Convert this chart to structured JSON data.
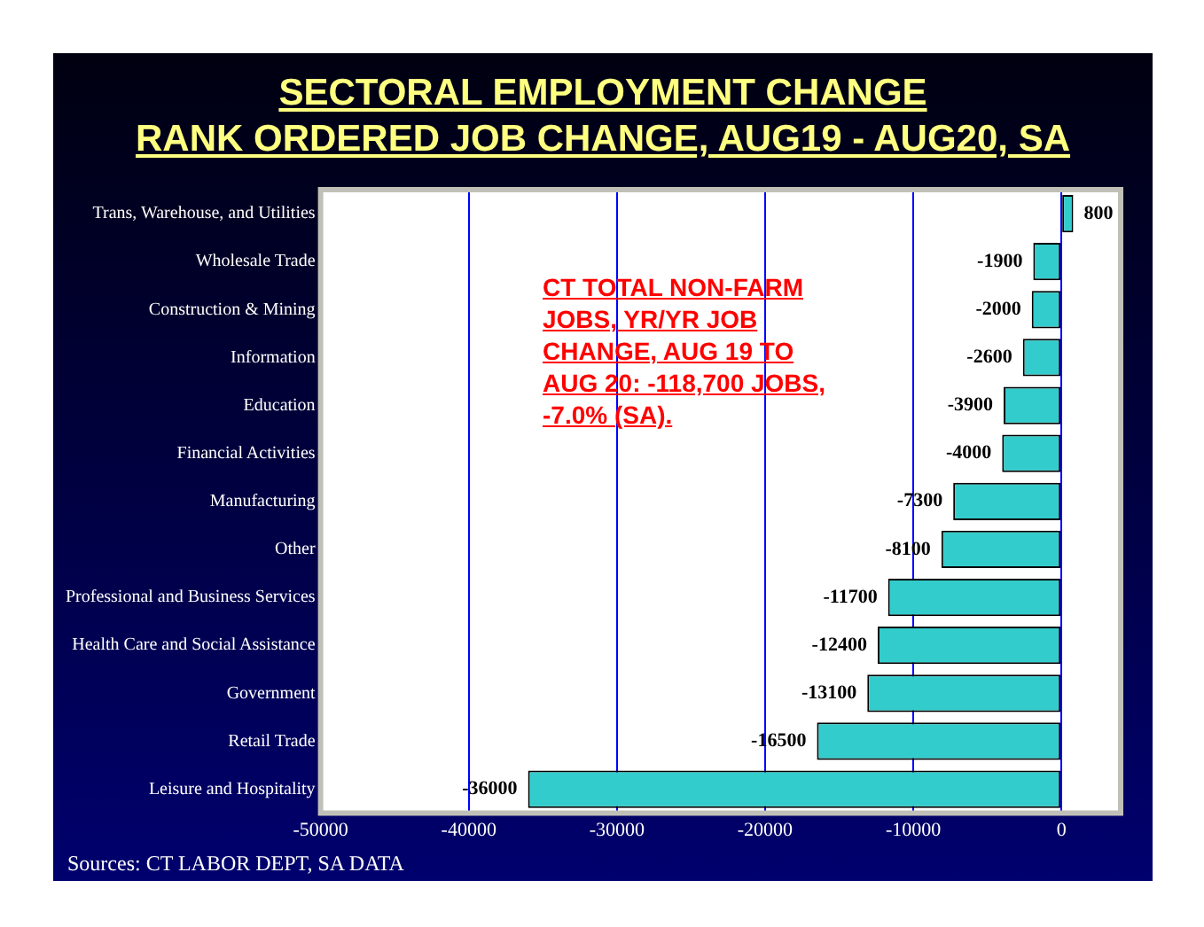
{
  "chart_data": {
    "type": "bar",
    "orientation": "horizontal",
    "title": "SECTORAL EMPLOYMENT CHANGE",
    "subtitle": "RANK ORDERED JOB CHANGE, AUG19 - AUG20, SA",
    "categories": [
      "Trans, Warehouse, and Utilities",
      "Wholesale Trade",
      "Construction & Mining",
      "Information",
      "Education",
      "Financial Activities",
      "Manufacturing",
      "Other",
      "Professional and Business Services",
      "Health Care and Social Assistance",
      "Government",
      "Retail Trade",
      "Leisure and Hospitality"
    ],
    "values": [
      800,
      -1900,
      -2000,
      -2600,
      -3900,
      -4000,
      -7300,
      -8100,
      -11700,
      -12400,
      -13100,
      -16500,
      -36000
    ],
    "color": "#33cccc",
    "xlim": [
      -50000,
      4000
    ],
    "xticks": [
      -50000,
      -40000,
      -30000,
      -20000,
      -10000,
      0
    ],
    "grid": "x",
    "legend": false,
    "data_labels": true,
    "annotations": [
      "CT TOTAL NON-FARM JOBS, YR/YR JOB CHANGE, AUG 19 TO AUG 20: -118,700 JOBS, -7.0% (SA).",
      "Sources: CT LABOR DEPT, SA DATA"
    ]
  }
}
